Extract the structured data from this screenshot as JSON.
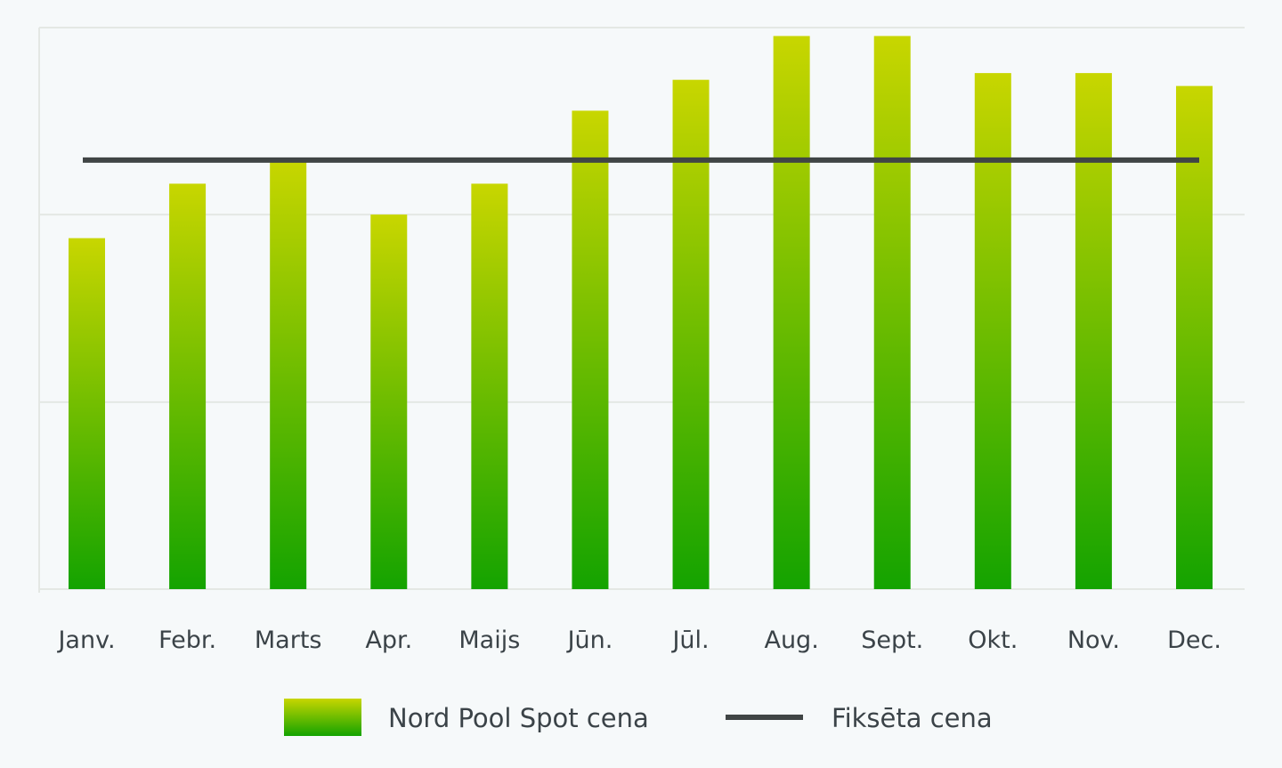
{
  "chart_data": {
    "type": "bar",
    "categories": [
      "Janv.",
      "Febr.",
      "Marts",
      "Apr.",
      "Maijs",
      "Jūn.",
      "Jūl.",
      "Aug.",
      "Sept.",
      "Okt.",
      "Nov.",
      "Dec."
    ],
    "series": [
      {
        "name": "Nord Pool Spot cena",
        "kind": "bar",
        "values": [
          0.625,
          0.722,
          0.765,
          0.667,
          0.722,
          0.852,
          0.907,
          0.985,
          0.985,
          0.919,
          0.919,
          0.896
        ]
      },
      {
        "name": "Fiksēta cena",
        "kind": "line",
        "values": [
          0.764,
          0.764,
          0.764,
          0.764,
          0.764,
          0.764,
          0.764,
          0.764,
          0.764,
          0.764,
          0.764,
          0.764
        ]
      }
    ],
    "ylim": [
      0,
      1
    ],
    "gridlines": [
      0,
      0.333,
      0.667,
      1
    ],
    "grid": true,
    "y_tick_labels": false,
    "legend": "bottom-center",
    "colors": {
      "bar_top": "#c8d600",
      "bar_bottom": "#14a300",
      "line": "#404545",
      "grid": "#e4e8e4",
      "text": "#3b4348"
    }
  }
}
